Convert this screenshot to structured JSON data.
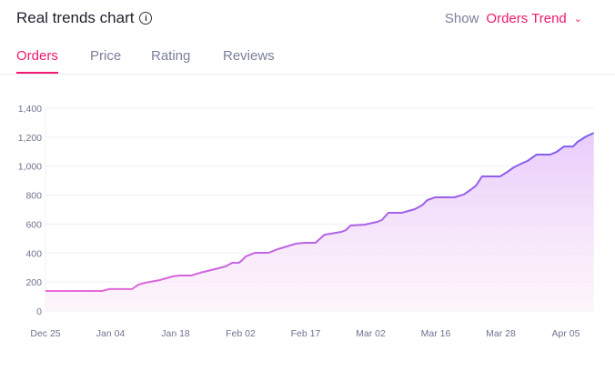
{
  "header": {
    "title": "Real trends chart",
    "show_label": "Show",
    "show_value": "Orders Trend"
  },
  "tabs": [
    {
      "label": "Orders",
      "active": true
    },
    {
      "label": "Price"
    },
    {
      "label": "Rating"
    },
    {
      "label": "Reviews"
    }
  ],
  "colors": {
    "accent": "#f0186f",
    "line_start": "#f06ad8",
    "line_end": "#7b5cf0"
  },
  "chart_data": {
    "type": "area",
    "title": "Orders",
    "xlabel": "",
    "ylabel": "",
    "ylim": [
      0,
      1400
    ],
    "yticks": [
      0,
      200,
      400,
      600,
      800,
      1000,
      1200,
      1400
    ],
    "ytick_labels": [
      "0",
      "200",
      "400",
      "600",
      "800",
      "1,000",
      "1,200",
      "1,400"
    ],
    "xtick_labels": [
      "Dec 25",
      "Jan 04",
      "Jan 18",
      "Feb 02",
      "Feb 17",
      "Mar 02",
      "Mar 16",
      "Mar 28",
      "Apr 05"
    ],
    "xlim": [
      0,
      8.43
    ],
    "grid": true,
    "series": [
      {
        "name": "Orders",
        "points": [
          [
            0,
            138
          ],
          [
            0.87,
            138
          ],
          [
            0.98,
            151
          ],
          [
            1.33,
            151
          ],
          [
            1.43,
            182
          ],
          [
            1.54,
            195
          ],
          [
            1.75,
            213
          ],
          [
            1.96,
            239
          ],
          [
            2.07,
            245
          ],
          [
            2.24,
            245
          ],
          [
            2.38,
            264
          ],
          [
            2.66,
            295
          ],
          [
            2.77,
            308
          ],
          [
            2.87,
            333
          ],
          [
            2.97,
            333
          ],
          [
            3.01,
            345
          ],
          [
            3.08,
            377
          ],
          [
            3.22,
            402
          ],
          [
            3.43,
            402
          ],
          [
            3.57,
            427
          ],
          [
            3.71,
            446
          ],
          [
            3.85,
            465
          ],
          [
            3.99,
            471
          ],
          [
            4.15,
            471
          ],
          [
            4.29,
            527
          ],
          [
            4.55,
            546
          ],
          [
            4.62,
            559
          ],
          [
            4.69,
            590
          ],
          [
            4.9,
            596
          ],
          [
            5.1,
            615
          ],
          [
            5.17,
            628
          ],
          [
            5.27,
            678
          ],
          [
            5.48,
            678
          ],
          [
            5.68,
            703
          ],
          [
            5.8,
            734
          ],
          [
            5.87,
            766
          ],
          [
            5.99,
            785
          ],
          [
            6.29,
            785
          ],
          [
            6.43,
            804
          ],
          [
            6.53,
            835
          ],
          [
            6.62,
            866
          ],
          [
            6.71,
            929
          ],
          [
            6.99,
            929
          ],
          [
            7.1,
            960
          ],
          [
            7.2,
            992
          ],
          [
            7.34,
            1023
          ],
          [
            7.41,
            1036
          ],
          [
            7.55,
            1080
          ],
          [
            7.76,
            1080
          ],
          [
            7.86,
            1099
          ],
          [
            7.97,
            1136
          ],
          [
            8.11,
            1136
          ],
          [
            8.18,
            1168
          ],
          [
            8.31,
            1205
          ],
          [
            8.43,
            1230
          ]
        ]
      }
    ]
  }
}
